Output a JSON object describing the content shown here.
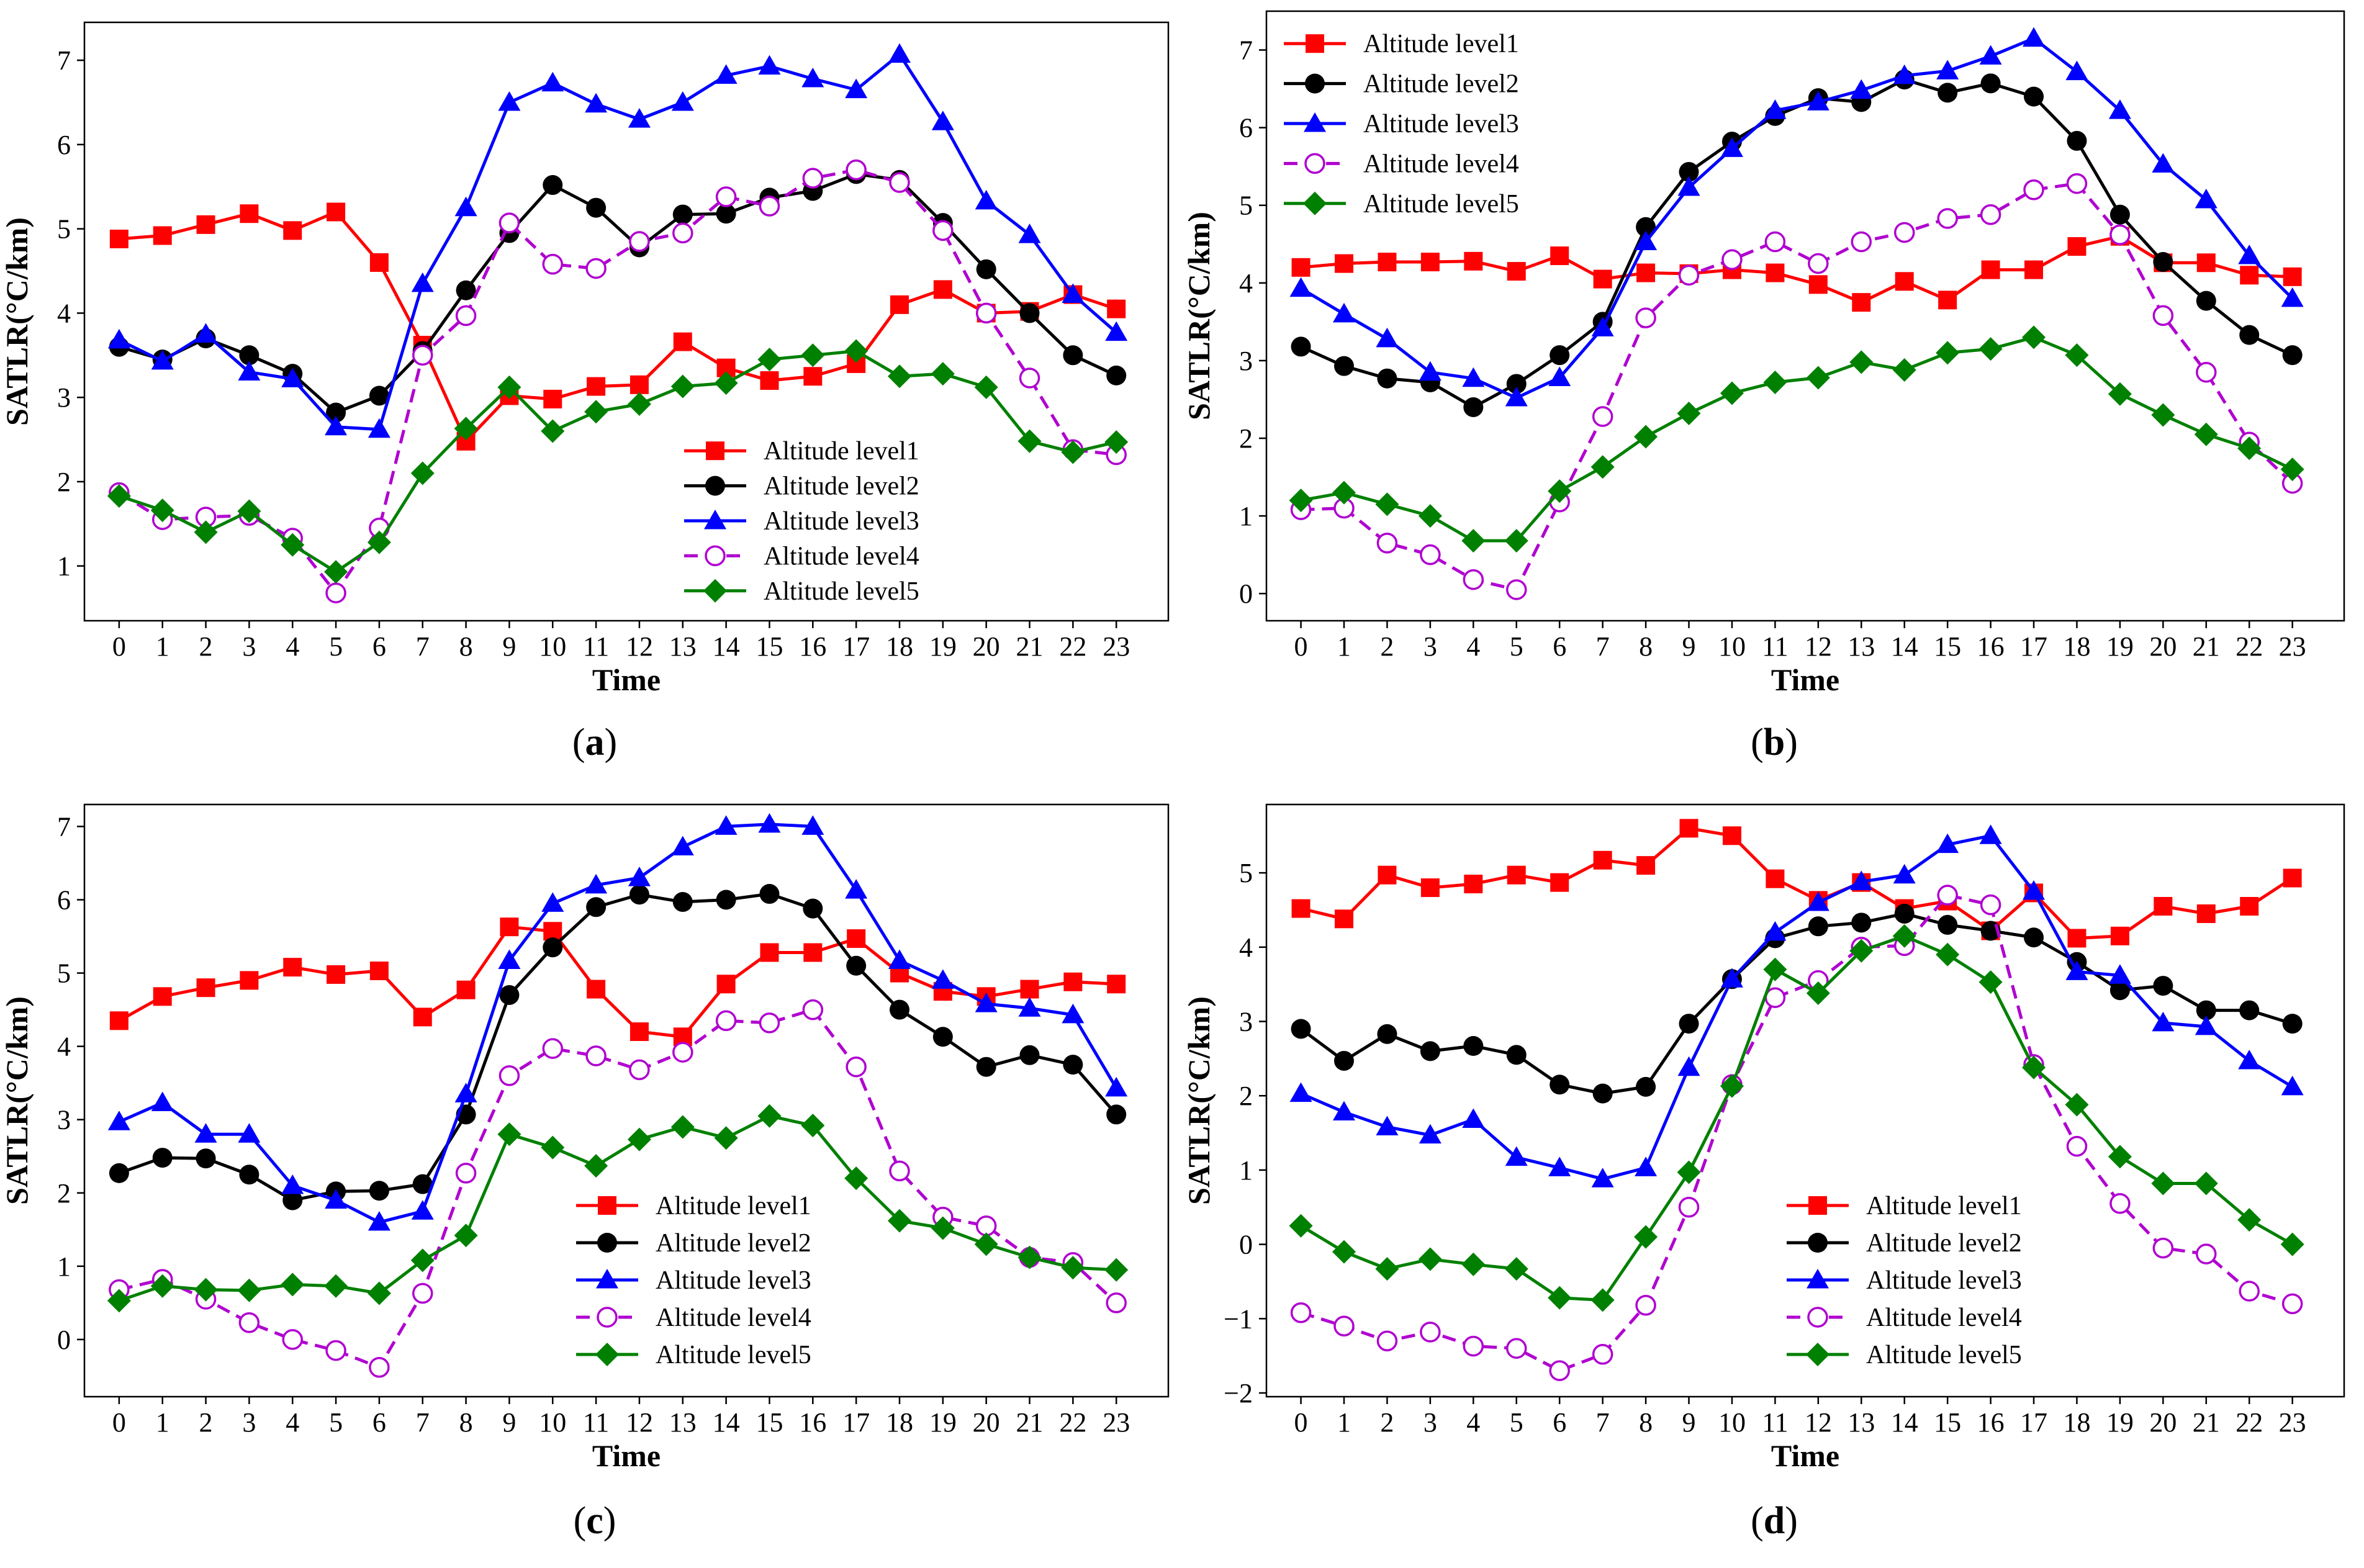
{
  "chart_data": [
    {
      "type": "line",
      "panel": "a",
      "caption": "(a)",
      "caption_letter": "a",
      "xlabel": "Time",
      "ylabel": "SATLR(°C/km)",
      "x": [
        0,
        1,
        2,
        3,
        4,
        5,
        6,
        7,
        8,
        9,
        10,
        11,
        12,
        13,
        14,
        15,
        16,
        17,
        18,
        19,
        20,
        21,
        22,
        23
      ],
      "x_ticks": [
        "0",
        "1",
        "2",
        "3",
        "4",
        "5",
        "6",
        "7",
        "8",
        "9",
        "10",
        "11",
        "12",
        "13",
        "14",
        "15",
        "16",
        "17",
        "18",
        "19",
        "20",
        "21",
        "22",
        "23"
      ],
      "xlim": [
        -0.8,
        24.2
      ],
      "ylim": [
        0.35,
        7.45
      ],
      "y_ticks": [
        1,
        2,
        3,
        4,
        5,
        6,
        7
      ],
      "y_tick_labels": [
        "1",
        "2",
        "3",
        "4",
        "5",
        "6",
        "7"
      ],
      "legend_position": "lower-right",
      "series": [
        {
          "name": "Altitude level1",
          "color": "#ff0000",
          "marker": "square",
          "dash": false,
          "values": [
            4.88,
            4.92,
            5.05,
            5.18,
            4.98,
            5.2,
            4.6,
            3.62,
            2.48,
            3.02,
            2.98,
            3.13,
            3.15,
            3.66,
            3.35,
            3.2,
            3.25,
            3.4,
            4.1,
            4.28,
            4.0,
            4.02,
            4.22,
            4.05
          ]
        },
        {
          "name": "Altitude level2",
          "color": "#000000",
          "marker": "circle",
          "dash": false,
          "values": [
            3.6,
            3.45,
            3.7,
            3.5,
            3.28,
            2.82,
            3.02,
            3.55,
            4.27,
            4.95,
            5.52,
            5.25,
            4.78,
            5.17,
            5.18,
            5.37,
            5.45,
            5.65,
            5.58,
            5.07,
            4.52,
            4.0,
            3.5,
            3.26
          ]
        },
        {
          "name": "Altitude level3",
          "color": "#0000ff",
          "marker": "triangle",
          "dash": false,
          "values": [
            3.68,
            3.43,
            3.75,
            3.3,
            3.22,
            2.65,
            2.62,
            4.35,
            5.25,
            6.5,
            6.73,
            6.48,
            6.3,
            6.5,
            6.82,
            6.93,
            6.78,
            6.65,
            7.07,
            6.27,
            5.33,
            4.93,
            4.22,
            3.77
          ]
        },
        {
          "name": "Altitude level4",
          "color": "#b000d0",
          "marker": "open-circle",
          "dash": true,
          "values": [
            1.87,
            1.55,
            1.58,
            1.6,
            1.33,
            0.68,
            1.45,
            3.5,
            3.97,
            5.07,
            4.58,
            4.53,
            4.85,
            4.95,
            5.38,
            5.27,
            5.6,
            5.7,
            5.55,
            4.98,
            4.0,
            3.23,
            2.38,
            2.32
          ]
        },
        {
          "name": "Altitude level5",
          "color": "#008000",
          "marker": "diamond",
          "dash": false,
          "values": [
            1.83,
            1.66,
            1.4,
            1.65,
            1.25,
            0.93,
            1.28,
            2.1,
            2.63,
            3.12,
            2.6,
            2.83,
            2.92,
            3.13,
            3.17,
            3.45,
            3.5,
            3.55,
            3.25,
            3.28,
            3.12,
            2.48,
            2.35,
            2.47
          ]
        }
      ]
    },
    {
      "type": "line",
      "panel": "b",
      "caption": "(b)",
      "caption_letter": "b",
      "xlabel": "Time",
      "ylabel": "SATLR(°C/km)",
      "x": [
        0,
        1,
        2,
        3,
        4,
        5,
        6,
        7,
        8,
        9,
        10,
        11,
        12,
        13,
        14,
        15,
        16,
        17,
        18,
        19,
        20,
        21,
        22,
        23
      ],
      "x_ticks": [
        "0",
        "1",
        "2",
        "3",
        "4",
        "5",
        "6",
        "7",
        "8",
        "9",
        "10",
        "11",
        "12",
        "13",
        "14",
        "15",
        "16",
        "17",
        "18",
        "19",
        "20",
        "21",
        "22",
        "23"
      ],
      "xlim": [
        -0.8,
        24.2
      ],
      "ylim": [
        -0.35,
        7.5
      ],
      "y_ticks": [
        0,
        1,
        2,
        3,
        4,
        5,
        6,
        7
      ],
      "y_tick_labels": [
        "0",
        "1",
        "2",
        "3",
        "4",
        "5",
        "6",
        "7"
      ],
      "legend_position": "upper-left",
      "series": [
        {
          "name": "Altitude level1",
          "color": "#ff0000",
          "marker": "square",
          "dash": false,
          "values": [
            4.2,
            4.25,
            4.27,
            4.27,
            4.28,
            4.15,
            4.35,
            4.05,
            4.13,
            4.12,
            4.17,
            4.13,
            3.98,
            3.75,
            4.02,
            3.78,
            4.17,
            4.17,
            4.47,
            4.6,
            4.26,
            4.26,
            4.1,
            4.08
          ]
        },
        {
          "name": "Altitude level2",
          "color": "#000000",
          "marker": "circle",
          "dash": false,
          "values": [
            3.18,
            2.93,
            2.77,
            2.72,
            2.4,
            2.7,
            3.07,
            3.5,
            4.72,
            5.43,
            5.82,
            6.15,
            6.38,
            6.33,
            6.62,
            6.45,
            6.57,
            6.4,
            5.83,
            4.88,
            4.27,
            3.77,
            3.33,
            3.07
          ]
        },
        {
          "name": "Altitude level3",
          "color": "#0000ff",
          "marker": "triangle",
          "dash": false,
          "values": [
            3.93,
            3.6,
            3.28,
            2.85,
            2.77,
            2.52,
            2.78,
            3.42,
            4.53,
            5.23,
            5.73,
            6.22,
            6.33,
            6.48,
            6.67,
            6.73,
            6.92,
            7.15,
            6.72,
            6.22,
            5.53,
            5.07,
            4.35,
            3.8
          ]
        },
        {
          "name": "Altitude level4",
          "color": "#b000d0",
          "marker": "open-circle",
          "dash": true,
          "values": [
            1.08,
            1.1,
            0.65,
            0.5,
            0.18,
            0.05,
            1.18,
            2.28,
            3.55,
            4.1,
            4.3,
            4.53,
            4.25,
            4.53,
            4.65,
            4.83,
            4.88,
            5.2,
            5.28,
            4.62,
            3.58,
            2.85,
            1.95,
            1.42
          ]
        },
        {
          "name": "Altitude level5",
          "color": "#008000",
          "marker": "diamond",
          "dash": false,
          "values": [
            1.2,
            1.3,
            1.15,
            1.0,
            0.68,
            0.68,
            1.32,
            1.63,
            2.02,
            2.32,
            2.58,
            2.72,
            2.78,
            2.98,
            2.88,
            3.1,
            3.15,
            3.3,
            3.07,
            2.57,
            2.3,
            2.05,
            1.87,
            1.6
          ]
        }
      ]
    },
    {
      "type": "line",
      "panel": "c",
      "caption": "(c)",
      "caption_letter": "c",
      "xlabel": "Time",
      "ylabel": "SATLR(°C/km)",
      "x": [
        0,
        1,
        2,
        3,
        4,
        5,
        6,
        7,
        8,
        9,
        10,
        11,
        12,
        13,
        14,
        15,
        16,
        17,
        18,
        19,
        20,
        21,
        22,
        23
      ],
      "x_ticks": [
        "0",
        "1",
        "2",
        "3",
        "4",
        "5",
        "6",
        "7",
        "8",
        "9",
        "10",
        "11",
        "12",
        "13",
        "14",
        "15",
        "16",
        "17",
        "18",
        "19",
        "20",
        "21",
        "22",
        "23"
      ],
      "xlim": [
        -0.8,
        24.2
      ],
      "ylim": [
        -0.78,
        7.3
      ],
      "y_ticks": [
        0,
        1,
        2,
        3,
        4,
        5,
        6,
        7
      ],
      "y_tick_labels": [
        "0",
        "1",
        "2",
        "3",
        "4",
        "5",
        "6",
        "7"
      ],
      "legend_position": "lower-center",
      "series": [
        {
          "name": "Altitude level1",
          "color": "#ff0000",
          "marker": "square",
          "dash": false,
          "values": [
            4.35,
            4.68,
            4.8,
            4.9,
            5.08,
            4.98,
            5.03,
            4.4,
            4.77,
            5.63,
            5.57,
            4.78,
            4.2,
            4.13,
            4.85,
            5.28,
            5.28,
            5.47,
            5.0,
            4.75,
            4.68,
            4.78,
            4.88,
            4.85
          ]
        },
        {
          "name": "Altitude level2",
          "color": "#000000",
          "marker": "circle",
          "dash": false,
          "values": [
            2.27,
            2.48,
            2.47,
            2.25,
            1.9,
            2.02,
            2.03,
            2.12,
            3.07,
            4.7,
            5.35,
            5.9,
            6.07,
            5.97,
            6.0,
            6.08,
            5.88,
            5.1,
            4.5,
            4.13,
            3.72,
            3.88,
            3.75,
            3.07
          ]
        },
        {
          "name": "Altitude level3",
          "color": "#0000ff",
          "marker": "triangle",
          "dash": false,
          "values": [
            2.97,
            3.23,
            2.8,
            2.8,
            2.1,
            1.9,
            1.6,
            1.75,
            3.35,
            5.17,
            5.95,
            6.2,
            6.3,
            6.72,
            7.0,
            7.03,
            7.0,
            6.13,
            5.17,
            4.9,
            4.58,
            4.52,
            4.43,
            3.43
          ]
        },
        {
          "name": "Altitude level4",
          "color": "#b000d0",
          "marker": "open-circle",
          "dash": true,
          "values": [
            0.68,
            0.82,
            0.55,
            0.23,
            0.0,
            -0.15,
            -0.38,
            0.63,
            2.27,
            3.6,
            3.97,
            3.87,
            3.68,
            3.92,
            4.35,
            4.32,
            4.5,
            3.72,
            2.3,
            1.67,
            1.55,
            1.12,
            1.05,
            0.5
          ]
        },
        {
          "name": "Altitude level5",
          "color": "#008000",
          "marker": "diamond",
          "dash": false,
          "values": [
            0.53,
            0.73,
            0.68,
            0.67,
            0.75,
            0.73,
            0.63,
            1.08,
            1.42,
            2.8,
            2.62,
            2.37,
            2.73,
            2.9,
            2.75,
            3.05,
            2.92,
            2.2,
            1.62,
            1.52,
            1.3,
            1.12,
            0.98,
            0.95
          ]
        }
      ]
    },
    {
      "type": "line",
      "panel": "d",
      "caption": "(d)",
      "caption_letter": "d",
      "xlabel": "Time",
      "ylabel": "SATLR(°C/km)",
      "x": [
        0,
        1,
        2,
        3,
        4,
        5,
        6,
        7,
        8,
        9,
        10,
        11,
        12,
        13,
        14,
        15,
        16,
        17,
        18,
        19,
        20,
        21,
        22,
        23
      ],
      "x_ticks": [
        "0",
        "1",
        "2",
        "3",
        "4",
        "5",
        "6",
        "7",
        "8",
        "9",
        "10",
        "11",
        "12",
        "13",
        "14",
        "15",
        "16",
        "17",
        "18",
        "19",
        "20",
        "21",
        "22",
        "23"
      ],
      "xlim": [
        -0.8,
        24.2
      ],
      "ylim": [
        -2.05,
        5.92
      ],
      "y_ticks": [
        -2,
        -1,
        0,
        1,
        2,
        3,
        4,
        5
      ],
      "y_tick_labels": [
        "−2",
        "−1",
        "0",
        "1",
        "2",
        "3",
        "4",
        "5"
      ],
      "legend_position": "lower-center",
      "series": [
        {
          "name": "Altitude level1",
          "color": "#ff0000",
          "marker": "square",
          "dash": false,
          "values": [
            4.52,
            4.38,
            4.97,
            4.8,
            4.85,
            4.97,
            4.87,
            5.17,
            5.1,
            5.6,
            5.5,
            4.92,
            4.63,
            4.87,
            4.52,
            4.62,
            4.22,
            4.73,
            4.12,
            4.15,
            4.55,
            4.45,
            4.55,
            4.93
          ]
        },
        {
          "name": "Altitude level2",
          "color": "#000000",
          "marker": "circle",
          "dash": false,
          "values": [
            2.9,
            2.47,
            2.83,
            2.6,
            2.67,
            2.55,
            2.15,
            2.03,
            2.12,
            2.97,
            3.57,
            4.12,
            4.28,
            4.33,
            4.45,
            4.3,
            4.22,
            4.13,
            3.8,
            3.42,
            3.48,
            3.15,
            3.15,
            2.97
          ]
        },
        {
          "name": "Altitude level3",
          "color": "#0000ff",
          "marker": "triangle",
          "dash": false,
          "values": [
            2.03,
            1.78,
            1.58,
            1.47,
            1.68,
            1.17,
            1.03,
            0.88,
            1.03,
            2.38,
            3.57,
            4.2,
            4.6,
            4.88,
            4.97,
            5.38,
            5.5,
            4.75,
            3.67,
            3.62,
            2.98,
            2.93,
            2.47,
            2.12
          ]
        },
        {
          "name": "Altitude level4",
          "color": "#b000d0",
          "marker": "open-circle",
          "dash": true,
          "values": [
            -0.92,
            -1.1,
            -1.3,
            -1.18,
            -1.37,
            -1.4,
            -1.7,
            -1.48,
            -0.82,
            0.5,
            2.15,
            3.32,
            3.55,
            4.0,
            4.02,
            4.7,
            4.57,
            2.42,
            1.32,
            0.55,
            -0.05,
            -0.13,
            -0.63,
            -0.8
          ]
        },
        {
          "name": "Altitude level5",
          "color": "#008000",
          "marker": "diamond",
          "dash": false,
          "values": [
            0.25,
            -0.1,
            -0.33,
            -0.2,
            -0.27,
            -0.33,
            -0.72,
            -0.75,
            0.1,
            0.97,
            2.13,
            3.7,
            3.38,
            3.95,
            4.15,
            3.9,
            3.53,
            2.38,
            1.88,
            1.18,
            0.82,
            0.82,
            0.33,
            0.0
          ]
        }
      ]
    }
  ]
}
